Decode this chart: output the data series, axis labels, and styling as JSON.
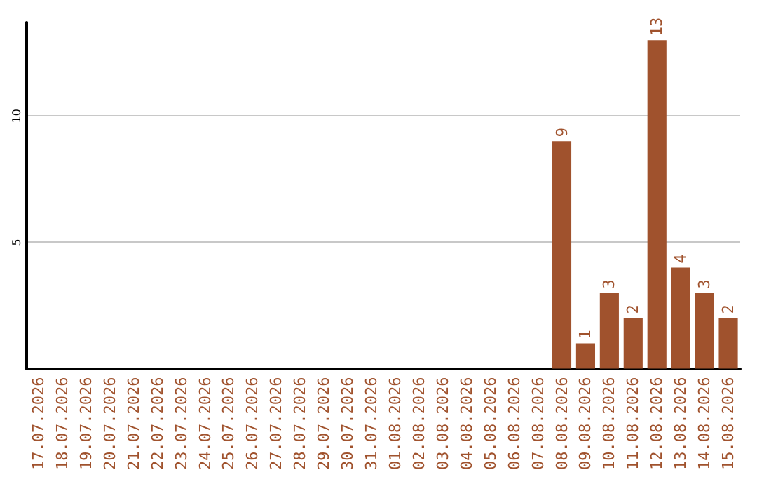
{
  "chart_data": {
    "type": "bar",
    "categories": [
      "17.07.2026",
      "18.07.2026",
      "19.07.2026",
      "20.07.2026",
      "21.07.2026",
      "22.07.2026",
      "23.07.2026",
      "24.07.2026",
      "25.07.2026",
      "26.07.2026",
      "27.07.2026",
      "28.07.2026",
      "29.07.2026",
      "30.07.2026",
      "31.07.2026",
      "01.08.2026",
      "02.08.2026",
      "03.08.2026",
      "04.08.2026",
      "05.08.2026",
      "06.08.2026",
      "07.08.2026",
      "08.08.2026",
      "09.08.2026",
      "10.08.2026",
      "11.08.2026",
      "12.08.2026",
      "13.08.2026",
      "14.08.2026",
      "15.08.2026"
    ],
    "values": [
      0,
      0,
      0,
      0,
      0,
      0,
      0,
      0,
      0,
      0,
      0,
      0,
      0,
      0,
      0,
      0,
      0,
      0,
      0,
      0,
      0,
      0,
      9,
      1,
      3,
      2,
      13,
      4,
      3,
      2
    ],
    "value_labels": [
      null,
      null,
      null,
      null,
      null,
      null,
      null,
      null,
      null,
      null,
      null,
      null,
      null,
      null,
      null,
      null,
      null,
      null,
      null,
      null,
      null,
      null,
      "9",
      "1",
      "3",
      "2",
      "13",
      "4",
      "3",
      "2"
    ],
    "color": "#a0522d",
    "ylim": [
      0,
      13.7
    ],
    "yticks": [
      5,
      10
    ],
    "grid": "y"
  }
}
